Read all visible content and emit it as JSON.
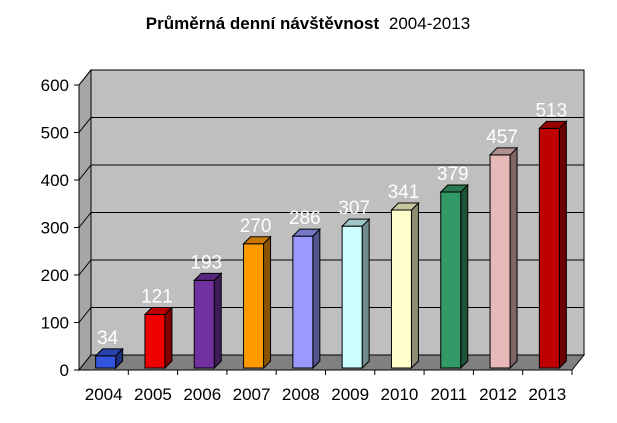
{
  "chart_data": {
    "type": "bar",
    "title_bold": "Průměrná denní návštěvnost",
    "title_regular": "2004-2013",
    "xlabel": "",
    "ylabel": "",
    "categories": [
      "2004",
      "2005",
      "2006",
      "2007",
      "2008",
      "2009",
      "2010",
      "2011",
      "2012",
      "2013"
    ],
    "values": [
      34,
      121,
      193,
      270,
      286,
      307,
      341,
      379,
      457,
      513
    ],
    "data_labels": [
      "34",
      "121",
      "193",
      "270",
      "286",
      "307",
      "341",
      "379",
      "457",
      "513"
    ],
    "y_ticks": [
      "0",
      "100",
      "200",
      "300",
      "400",
      "500",
      "600"
    ],
    "ylim": [
      0,
      600
    ],
    "grid": true,
    "legend": "none",
    "style": "3d-bar",
    "colors": [
      "#3355dd",
      "#ee0000",
      "#7030a0",
      "#ff9900",
      "#9999ff",
      "#ccffff",
      "#ffffcc",
      "#339966",
      "#e6b9b8",
      "#c00000"
    ],
    "wall_color": "#bfbfbf",
    "floor_color": "#808080"
  }
}
